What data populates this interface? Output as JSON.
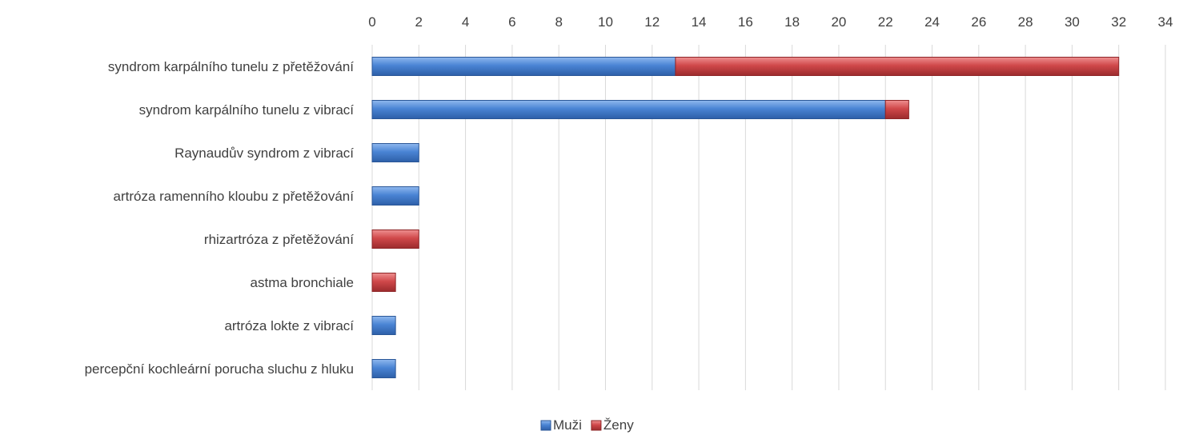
{
  "chart_data": {
    "type": "bar",
    "orientation": "horizontal",
    "stacked": true,
    "categories": [
      "syndrom karpálního tunelu z přetěžování",
      "syndrom karpálního tunelu z vibrací",
      "Raynaudův syndrom z vibrací",
      "artróza ramenního kloubu z přetěžování",
      "rhizartróza z přetěžování",
      "astma bronchiale",
      "artróza lokte z vibrací",
      "percepční kochleární porucha sluchu z hluku"
    ],
    "series": [
      {
        "name": "Muži",
        "color": "#4a84d4",
        "values": [
          13,
          22,
          2,
          2,
          0,
          0,
          1,
          1
        ]
      },
      {
        "name": "Ženy",
        "color": "#d0484a",
        "values": [
          19,
          1,
          0,
          0,
          2,
          1,
          0,
          0
        ]
      }
    ],
    "xlim": [
      0,
      34
    ],
    "xticks": [
      0,
      2,
      4,
      6,
      8,
      10,
      12,
      14,
      16,
      18,
      20,
      22,
      24,
      26,
      28,
      30,
      32,
      34
    ],
    "x_axis_position": "top",
    "grid": "vertical",
    "legend_position": "bottom",
    "title": "",
    "xlabel": "",
    "ylabel": ""
  }
}
